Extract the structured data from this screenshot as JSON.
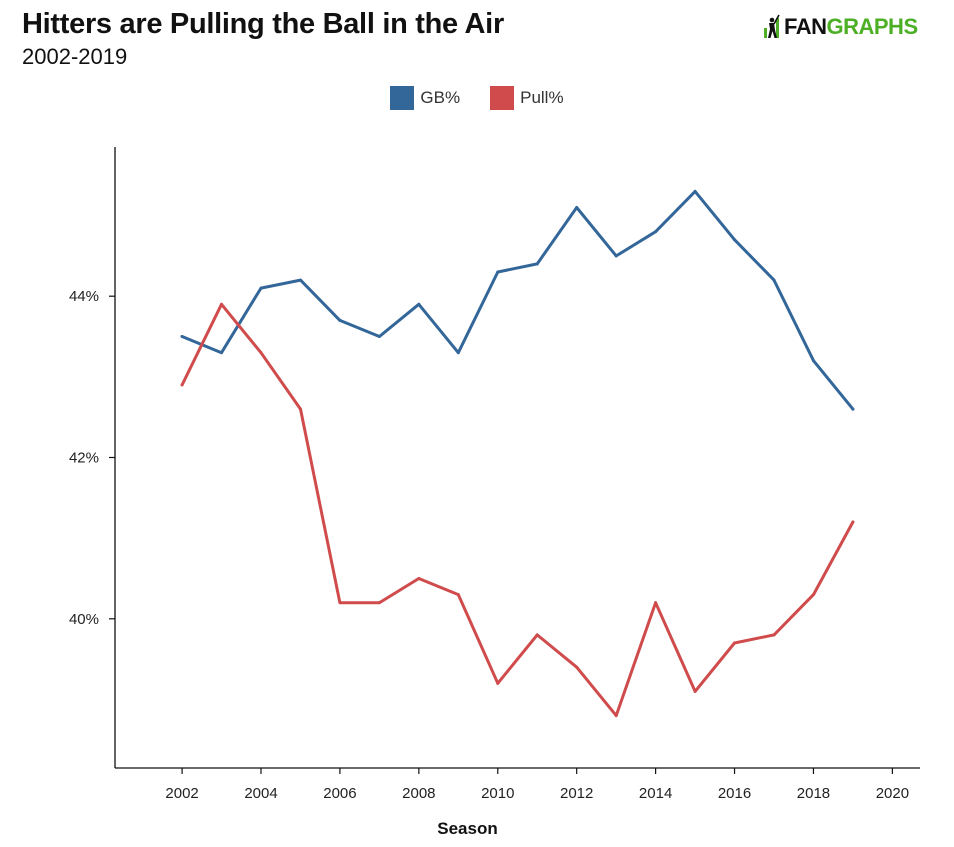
{
  "header": {
    "title": "Hitters are Pulling the Ball in the Air",
    "subtitle": "2002-2019",
    "logo_left": "FAN",
    "logo_right": "GRAPHS"
  },
  "colors": {
    "gb": "#336699",
    "pull": "#d04b4b",
    "logo_green": "#4caf25"
  },
  "chart_data": {
    "type": "line",
    "title": "Hitters are Pulling the Ball in the Air",
    "subtitle": "2002-2019",
    "xlabel": "Season",
    "ylabel": "",
    "xlim": [
      2000.3,
      2020.7
    ],
    "ylim": [
      38.15,
      45.85
    ],
    "x_ticks": [
      2002,
      2004,
      2006,
      2008,
      2010,
      2012,
      2014,
      2016,
      2018,
      2020
    ],
    "x_tick_labels": [
      "2002",
      "2004",
      "2006",
      "2008",
      "2010",
      "2012",
      "2014",
      "2016",
      "2018",
      "2020"
    ],
    "y_ticks": [
      40,
      42,
      44
    ],
    "y_tick_labels": [
      "40%",
      "42%",
      "44%"
    ],
    "grid": false,
    "legend_position": "top-center",
    "x": [
      2002,
      2003,
      2004,
      2005,
      2006,
      2007,
      2008,
      2009,
      2010,
      2011,
      2012,
      2013,
      2014,
      2015,
      2016,
      2017,
      2018,
      2019
    ],
    "series": [
      {
        "name": "GB%",
        "color": "#336699",
        "values": [
          43.5,
          43.3,
          44.1,
          44.2,
          43.7,
          43.5,
          43.9,
          43.3,
          44.3,
          44.4,
          45.1,
          44.5,
          44.8,
          45.3,
          44.7,
          44.2,
          43.2,
          42.6
        ]
      },
      {
        "name": "Pull%",
        "color": "#d04b4b",
        "values": [
          42.9,
          43.9,
          43.3,
          42.6,
          40.2,
          40.2,
          40.5,
          40.3,
          39.2,
          39.8,
          39.4,
          38.8,
          40.2,
          39.1,
          39.7,
          39.8,
          40.3,
          41.2
        ]
      }
    ]
  }
}
